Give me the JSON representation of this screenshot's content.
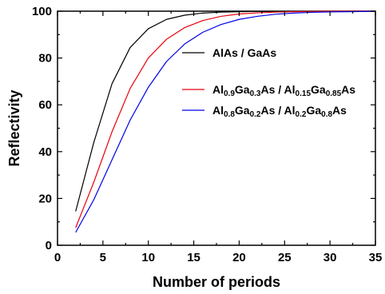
{
  "chart_data": {
    "type": "line",
    "xlabel": "Number of periods",
    "ylabel": "Reflectivity",
    "xlim": [
      0,
      35
    ],
    "ylim": [
      0,
      100
    ],
    "xticks": [
      "0",
      "5",
      "10",
      "15",
      "20",
      "25",
      "30",
      "35"
    ],
    "yticks": [
      "0",
      "20",
      "40",
      "60",
      "80",
      "100"
    ],
    "grid": false,
    "legend_position": "right",
    "series": [
      {
        "name": "AlAs / GaAs",
        "legend_parts": [
          {
            "t": "AlAs / GaAs",
            "sub": false
          }
        ],
        "color": "#000000",
        "x": [
          2,
          4,
          6,
          8,
          10,
          12,
          14,
          16,
          18,
          20,
          22,
          24,
          26,
          28,
          30,
          32,
          34,
          35
        ],
        "y": [
          14.5,
          44,
          69,
          84.5,
          92.5,
          96.5,
          98.3,
          99.2,
          99.6,
          99.8,
          99.9,
          99.95,
          99.97,
          99.98,
          99.99,
          99.99,
          100,
          100
        ]
      },
      {
        "name": "Al0.9Ga0.3As / Al0.15Ga0.85As",
        "legend_parts": [
          {
            "t": "Al",
            "sub": false
          },
          {
            "t": "0.9",
            "sub": true
          },
          {
            "t": "Ga",
            "sub": false
          },
          {
            "t": "0.3",
            "sub": true
          },
          {
            "t": "As / Al",
            "sub": false
          },
          {
            "t": "0.15",
            "sub": true
          },
          {
            "t": "Ga",
            "sub": false
          },
          {
            "t": "0.85",
            "sub": true
          },
          {
            "t": "As",
            "sub": false
          }
        ],
        "color": "#e8000b",
        "x": [
          2,
          4,
          6,
          8,
          10,
          12,
          14,
          16,
          18,
          20,
          22,
          24,
          26,
          28,
          30,
          32,
          34,
          35
        ],
        "y": [
          7.5,
          27,
          48.5,
          67,
          80,
          88,
          93,
          96,
          97.8,
          98.8,
          99.3,
          99.6,
          99.8,
          99.9,
          99.95,
          99.97,
          99.98,
          100
        ]
      },
      {
        "name": "Al0.8Ga0.2As / Al0.2Ga0.8As",
        "legend_parts": [
          {
            "t": "Al",
            "sub": false
          },
          {
            "t": "0.8",
            "sub": true
          },
          {
            "t": "Ga",
            "sub": false
          },
          {
            "t": "0.2",
            "sub": true
          },
          {
            "t": "As / Al",
            "sub": false
          },
          {
            "t": "0.2",
            "sub": true
          },
          {
            "t": "Ga",
            "sub": false
          },
          {
            "t": "0.8",
            "sub": true
          },
          {
            "t": "As",
            "sub": false
          }
        ],
        "color": "#0000e6",
        "x": [
          2,
          4,
          6,
          8,
          10,
          12,
          14,
          16,
          18,
          20,
          22,
          24,
          26,
          28,
          30,
          32,
          34,
          35
        ],
        "y": [
          5.5,
          19.5,
          36.5,
          53.5,
          67.5,
          78.5,
          86,
          91,
          94.3,
          96.5,
          97.8,
          98.7,
          99.2,
          99.5,
          99.7,
          99.8,
          99.9,
          99.95
        ]
      }
    ]
  }
}
